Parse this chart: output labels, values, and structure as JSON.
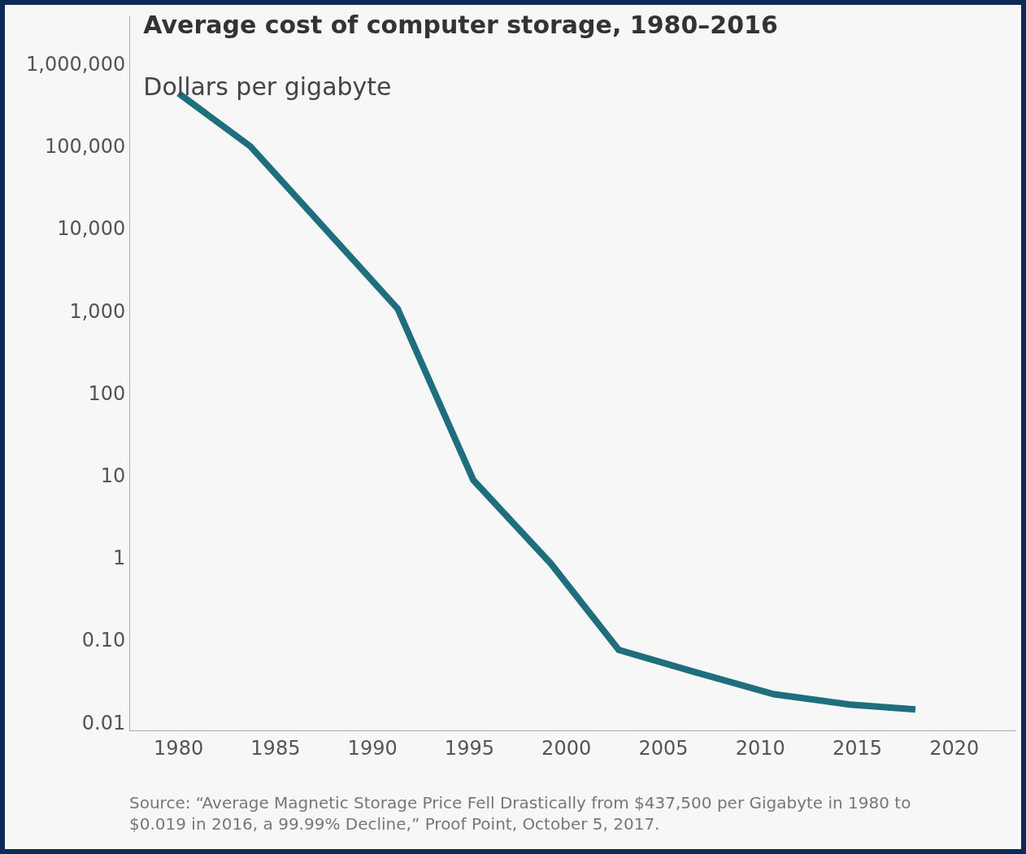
{
  "chart_data": {
    "type": "line",
    "title": "Average cost of computer storage, 1980–2016",
    "subtitle": "Dollars per gigabyte",
    "annotations": [
      "Source: “Average Magnetic Storage Price Fell Drastically from $437,500 per Gigabyte in 1980 to $0.019 in 2016, a 99.99% Decline,” Proof Point, October 5, 2017."
    ],
    "series": [
      {
        "color": "#1e6e7e",
        "x": [
          1980,
          1983.7,
          1991.3,
          1995.2,
          1999.2,
          2002.7,
          2006.6,
          2010.7,
          2014.6,
          2018
        ],
        "values": [
          440000,
          100000,
          1060,
          8.8,
          0.85,
          0.076,
          0.041,
          0.022,
          0.0165,
          0.0144
        ]
      }
    ],
    "xlim": [
      1977.5,
      2023.2
    ],
    "xticks": [
      1980,
      1985,
      1990,
      1995,
      2000,
      2005,
      2010,
      2015,
      2020
    ],
    "ylim": [
      0.008,
      3800000
    ],
    "yticks": [
      {
        "value": 0.01,
        "label": "0.01"
      },
      {
        "value": 0.1,
        "label": "0.10"
      },
      1,
      10,
      100,
      {
        "value": 1000,
        "label": "1,000"
      },
      {
        "value": 10000,
        "label": "10,000"
      },
      {
        "value": 100000,
        "label": "100,000"
      },
      {
        "value": 1000000,
        "label": "1,000,000"
      }
    ],
    "log": "y",
    "marker": "none",
    "line_style": "solid"
  }
}
